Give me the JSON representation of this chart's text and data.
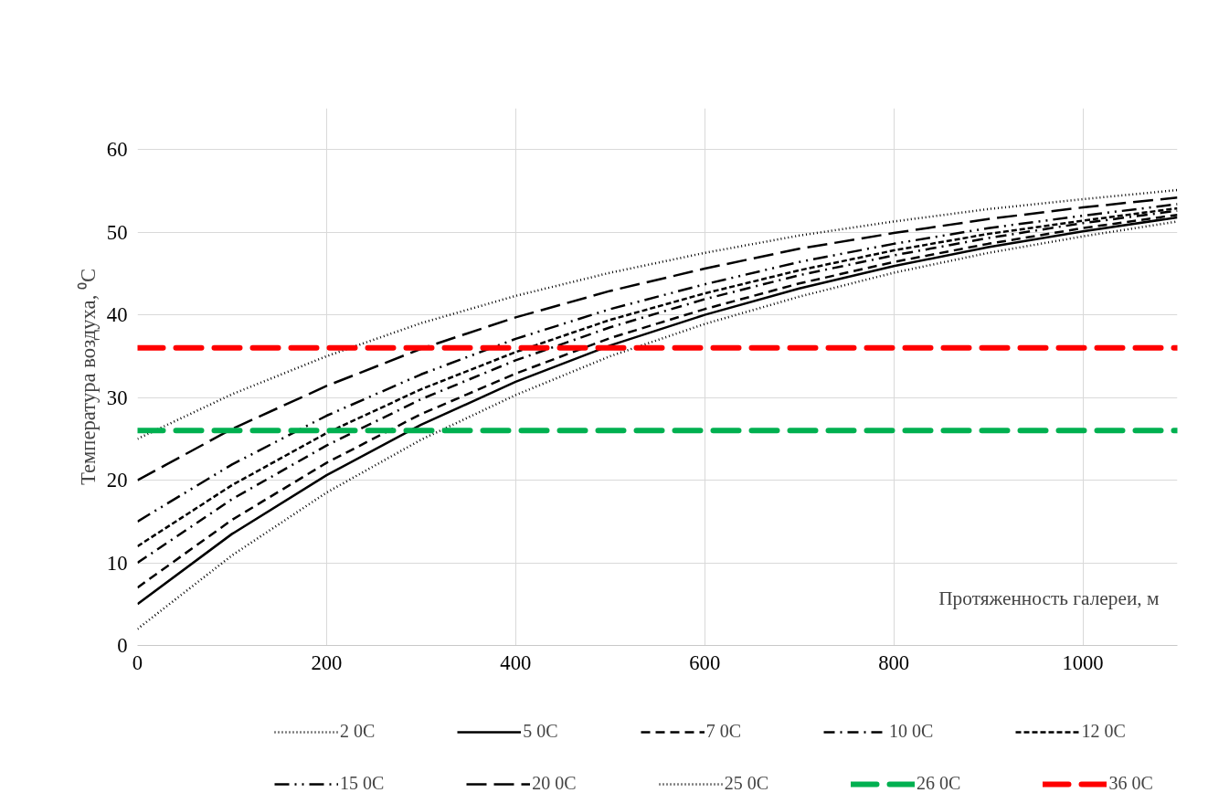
{
  "chart_data": {
    "type": "line",
    "xlabel": "Протяженность галереи, м",
    "ylabel": "Температура воздуха, ⁰C",
    "x": [
      0,
      100,
      200,
      300,
      400,
      500,
      600,
      700,
      800,
      900,
      1000,
      1100
    ],
    "series": [
      {
        "name": "2 0C",
        "color": "#000000",
        "line_style": "dotted",
        "values": [
          2,
          10.9,
          18.5,
          24.9,
          30.3,
          35.0,
          38.9,
          42.2,
          45.1,
          47.5,
          49.5,
          51.3
        ]
      },
      {
        "name": "5 0C",
        "color": "#000000",
        "line_style": "solid",
        "values": [
          5,
          13.5,
          20.6,
          26.7,
          31.9,
          36.3,
          40.0,
          43.2,
          45.9,
          48.2,
          50.1,
          51.8
        ]
      },
      {
        "name": "7 0C",
        "color": "#000000",
        "line_style": "dashed",
        "values": [
          7,
          15.2,
          22.1,
          28.0,
          32.9,
          37.2,
          40.7,
          43.8,
          46.4,
          48.6,
          50.5,
          52.1
        ]
      },
      {
        "name": "10 0C",
        "color": "#000000",
        "line_style": "dashdot",
        "values": [
          10,
          17.7,
          24.2,
          29.8,
          34.5,
          38.5,
          41.9,
          44.8,
          47.2,
          49.3,
          51.1,
          52.6
        ]
      },
      {
        "name": "12 0C",
        "color": "#000000",
        "line_style": "short_dashed",
        "values": [
          12,
          19.4,
          25.7,
          31.0,
          35.5,
          39.4,
          42.6,
          45.4,
          47.8,
          49.8,
          51.4,
          52.9
        ]
      },
      {
        "name": "15 0C",
        "color": "#000000",
        "line_style": "dashdotdot",
        "values": [
          15,
          21.9,
          27.8,
          32.8,
          37.1,
          40.7,
          43.7,
          46.4,
          48.6,
          50.5,
          52.0,
          53.4
        ]
      },
      {
        "name": "20 0C",
        "color": "#000000",
        "line_style": "long_dashed",
        "values": [
          20,
          26.2,
          31.4,
          35.9,
          39.7,
          42.9,
          45.6,
          48.0,
          49.9,
          51.6,
          53.0,
          54.2
        ]
      },
      {
        "name": "25 0C",
        "color": "#000000",
        "line_style": "dotted",
        "values": [
          25,
          30.4,
          35.0,
          39.0,
          42.3,
          45.1,
          47.5,
          49.6,
          51.3,
          52.8,
          54.0,
          55.1
        ]
      },
      {
        "name": "26 0C",
        "color": "#00b050",
        "line_style": "thick_dashed",
        "values": [
          26,
          26,
          26,
          26,
          26,
          26,
          26,
          26,
          26,
          26,
          26,
          26
        ]
      },
      {
        "name": "36 0C",
        "color": "#ff0000",
        "line_style": "thick_dashed",
        "values": [
          36,
          36,
          36,
          36,
          36,
          36,
          36,
          36,
          36,
          36,
          36,
          36
        ]
      }
    ],
    "xlim": [
      0,
      1100
    ],
    "xticks": [
      0,
      200,
      400,
      600,
      800,
      1000
    ],
    "ylim": [
      0,
      65
    ],
    "yticks": [
      0,
      10,
      20,
      30,
      40,
      50,
      60
    ],
    "grid": true,
    "legend": "bottom",
    "marker": "none"
  }
}
